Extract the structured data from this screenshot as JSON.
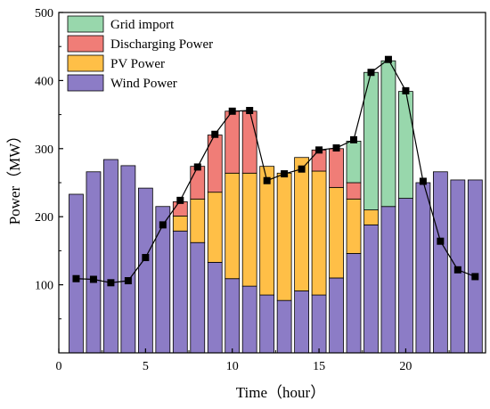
{
  "chart_data": {
    "type": "bar",
    "stacked": true,
    "title": "",
    "xlabel": "Time（hour）",
    "ylabel": "Power（MW）",
    "xlim": [
      0,
      24.6
    ],
    "ylim": [
      0,
      500
    ],
    "x": [
      1,
      2,
      3,
      4,
      5,
      6,
      7,
      8,
      9,
      10,
      11,
      12,
      13,
      14,
      15,
      16,
      17,
      18,
      19,
      20,
      21,
      22,
      23,
      24
    ],
    "x_ticks": [
      "0",
      "5",
      "10",
      "15",
      "20"
    ],
    "y_ticks": [
      "100",
      "200",
      "300",
      "400",
      "500"
    ],
    "grid": false,
    "legend_position": "top-left",
    "series": [
      {
        "name": "Wind Power",
        "color": "#8c7cc6",
        "values": [
          233,
          266,
          284,
          275,
          242,
          215,
          179,
          162,
          133,
          109,
          98,
          85,
          77,
          91,
          85,
          110,
          146,
          188,
          215,
          227,
          250,
          266,
          254,
          254
        ]
      },
      {
        "name": "PV Power",
        "color": "#ffbf47",
        "values": [
          0,
          0,
          0,
          0,
          0,
          0,
          22,
          64,
          103,
          155,
          166,
          189,
          187,
          196,
          182,
          133,
          80,
          22,
          0,
          0,
          0,
          0,
          0,
          0
        ]
      },
      {
        "name": "Discharging Power",
        "color": "#f07d77",
        "values": [
          0,
          0,
          0,
          0,
          0,
          0,
          21,
          48,
          84,
          91,
          91,
          0,
          0,
          0,
          31,
          57,
          24,
          0,
          0,
          0,
          0,
          0,
          0,
          0
        ]
      },
      {
        "name": "Grid import",
        "color": "#98d7ac",
        "values": [
          0,
          0,
          0,
          0,
          0,
          0,
          0,
          0,
          0,
          0,
          0,
          0,
          0,
          0,
          0,
          0,
          61,
          202,
          214,
          157,
          0,
          0,
          0,
          0
        ]
      },
      {
        "name": "",
        "type": "line",
        "color": "#000000",
        "values": [
          109,
          108,
          103,
          106,
          140,
          188,
          224,
          273,
          321,
          355,
          356,
          253,
          263,
          270,
          298,
          301,
          313,
          412,
          431,
          385,
          252,
          164,
          122,
          112
        ]
      }
    ]
  },
  "legend": {
    "items": [
      {
        "label": "Grid import",
        "color": "#98d7ac"
      },
      {
        "label": "Discharging Power",
        "color": "#f07d77"
      },
      {
        "label": "PV Power",
        "color": "#ffbf47"
      },
      {
        "label": "Wind Power",
        "color": "#8c7cc6"
      }
    ]
  }
}
